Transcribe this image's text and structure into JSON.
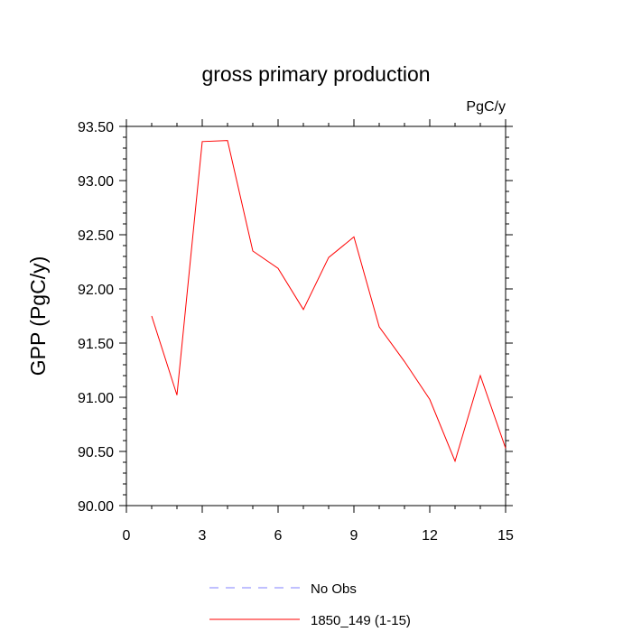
{
  "chart_data": {
    "type": "line",
    "title": "gross primary production",
    "units_label": "PgC/y",
    "ylabel": "GPP  (PgC/y)",
    "xlabel": "",
    "xlim": [
      0,
      15
    ],
    "ylim": [
      90.0,
      93.5
    ],
    "xticks": [
      0,
      3,
      6,
      9,
      12,
      15
    ],
    "xtick_labels": [
      "0",
      "3",
      "6",
      "9",
      "12",
      "15"
    ],
    "yticks": [
      90.0,
      90.5,
      91.0,
      91.5,
      92.0,
      92.5,
      93.0,
      93.5
    ],
    "ytick_labels": [
      "90.00",
      "90.50",
      "91.00",
      "91.50",
      "92.00",
      "92.50",
      "93.00",
      "93.50"
    ],
    "grid": false,
    "legend_position": "bottom",
    "series": [
      {
        "name": "No Obs",
        "color": "#8080ff",
        "dash": true,
        "x": [],
        "y": []
      },
      {
        "name": "1850_149 (1-15)",
        "color": "#ff0000",
        "dash": false,
        "x": [
          1,
          2,
          3,
          4,
          5,
          6,
          7,
          8,
          9,
          10,
          11,
          12,
          13,
          14,
          15
        ],
        "y": [
          91.75,
          91.02,
          93.36,
          93.37,
          92.35,
          92.19,
          91.81,
          92.29,
          92.48,
          91.65,
          91.33,
          90.98,
          90.41,
          91.2,
          90.53
        ]
      }
    ]
  }
}
